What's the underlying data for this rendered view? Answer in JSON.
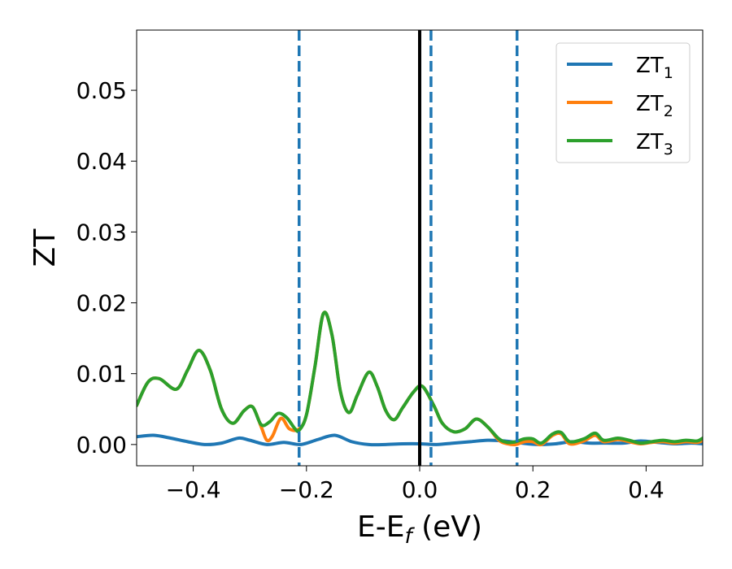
{
  "chart_data": {
    "type": "line",
    "xlabel": "E-E",
    "xlabel_subscript": "f",
    "xlabel_suffix": " (eV)",
    "ylabel": "ZT",
    "xlim": [
      -0.5,
      0.5
    ],
    "ylim": [
      -0.003,
      0.0585
    ],
    "xticks": [
      -0.4,
      -0.2,
      0.0,
      0.2,
      0.4
    ],
    "xtick_labels": [
      "−0.4",
      "−0.2",
      "0.0",
      "0.2",
      "0.4"
    ],
    "yticks": [
      0.0,
      0.01,
      0.02,
      0.03,
      0.04,
      0.05
    ],
    "ytick_labels": [
      "0.00",
      "0.01",
      "0.02",
      "0.03",
      "0.04",
      "0.05"
    ],
    "grid": false,
    "legend_position": "top-right",
    "vertical_lines": [
      {
        "x": 0.0,
        "style": "solid",
        "color": "#000000"
      },
      {
        "x": -0.213,
        "style": "dashed",
        "color": "#1f77b4"
      },
      {
        "x": 0.02,
        "style": "dashed",
        "color": "#1f77b4"
      },
      {
        "x": 0.172,
        "style": "dashed",
        "color": "#1f77b4"
      }
    ],
    "series": [
      {
        "name": "ZT",
        "name_subscript": "1",
        "color": "#1f77b4",
        "x": [
          -0.5,
          -0.47,
          -0.44,
          -0.41,
          -0.38,
          -0.35,
          -0.32,
          -0.3,
          -0.27,
          -0.24,
          -0.21,
          -0.18,
          -0.15,
          -0.12,
          -0.09,
          -0.06,
          -0.03,
          0.0,
          0.03,
          0.06,
          0.09,
          0.12,
          0.15,
          0.18,
          0.21,
          0.24,
          0.27,
          0.3,
          0.33,
          0.36,
          0.39,
          0.42,
          0.45,
          0.48,
          0.5
        ],
        "y": [
          0.0011,
          0.0013,
          0.0009,
          0.0004,
          0.0,
          0.0002,
          0.0009,
          0.0006,
          0.0,
          0.0003,
          0.0,
          0.0007,
          0.0013,
          0.0004,
          0.0,
          0.0,
          0.0001,
          0.0001,
          0.0,
          0.0002,
          0.0004,
          0.0006,
          0.0005,
          0.0002,
          0.0,
          0.0001,
          0.0004,
          0.0002,
          0.0002,
          0.0002,
          0.0005,
          0.0003,
          0.0001,
          0.0002,
          0.0001
        ]
      },
      {
        "name": "ZT",
        "name_subscript": "2",
        "color": "#ff7f0e",
        "x": [
          -0.5,
          -0.48,
          -0.46,
          -0.43,
          -0.41,
          -0.39,
          -0.37,
          -0.35,
          -0.33,
          -0.31,
          -0.295,
          -0.28,
          -0.27,
          -0.26,
          -0.245,
          -0.23,
          -0.213,
          -0.2,
          -0.185,
          -0.17,
          -0.155,
          -0.14,
          -0.125,
          -0.11,
          -0.09,
          -0.075,
          -0.06,
          -0.045,
          -0.03,
          -0.01,
          0.005,
          0.025,
          0.04,
          0.06,
          0.08,
          0.1,
          0.12,
          0.14,
          0.155,
          0.17,
          0.185,
          0.2,
          0.215,
          0.235,
          0.25,
          0.265,
          0.29,
          0.31,
          0.325,
          0.35,
          0.37,
          0.39,
          0.41,
          0.43,
          0.45,
          0.47,
          0.49,
          0.5
        ],
        "y": [
          0.0055,
          0.0088,
          0.0093,
          0.0078,
          0.0105,
          0.0133,
          0.0105,
          0.005,
          0.003,
          0.0048,
          0.0053,
          0.0025,
          0.0006,
          0.0012,
          0.0037,
          0.0022,
          0.0022,
          0.0042,
          0.011,
          0.0185,
          0.0155,
          0.0075,
          0.0045,
          0.007,
          0.0102,
          0.0082,
          0.0048,
          0.0035,
          0.0052,
          0.0075,
          0.0082,
          0.0055,
          0.003,
          0.0018,
          0.0022,
          0.0036,
          0.0025,
          0.0006,
          0.0001,
          0.0,
          0.0004,
          0.0004,
          0.0,
          0.0013,
          0.0015,
          0.0001,
          0.0005,
          0.0013,
          0.0004,
          0.0007,
          0.0004,
          0.0001,
          0.0003,
          0.0004,
          0.0002,
          0.0004,
          0.0003,
          0.0006
        ]
      },
      {
        "name": "ZT",
        "name_subscript": "3",
        "color": "#2ca02c",
        "x": [
          -0.5,
          -0.48,
          -0.46,
          -0.43,
          -0.41,
          -0.39,
          -0.37,
          -0.35,
          -0.33,
          -0.31,
          -0.295,
          -0.28,
          -0.265,
          -0.25,
          -0.235,
          -0.22,
          -0.213,
          -0.2,
          -0.185,
          -0.17,
          -0.155,
          -0.14,
          -0.125,
          -0.11,
          -0.09,
          -0.075,
          -0.06,
          -0.045,
          -0.03,
          -0.01,
          0.005,
          0.025,
          0.04,
          0.06,
          0.08,
          0.1,
          0.12,
          0.14,
          0.155,
          0.17,
          0.185,
          0.2,
          0.215,
          0.235,
          0.25,
          0.265,
          0.29,
          0.31,
          0.325,
          0.35,
          0.37,
          0.39,
          0.41,
          0.43,
          0.45,
          0.47,
          0.49,
          0.5
        ],
        "y": [
          0.0055,
          0.0088,
          0.0093,
          0.0078,
          0.0105,
          0.0133,
          0.0105,
          0.005,
          0.003,
          0.0048,
          0.0053,
          0.0028,
          0.0032,
          0.0044,
          0.0038,
          0.0022,
          0.002,
          0.0042,
          0.011,
          0.0185,
          0.0155,
          0.0075,
          0.0045,
          0.007,
          0.0102,
          0.0082,
          0.0048,
          0.0035,
          0.0052,
          0.0075,
          0.0082,
          0.0055,
          0.003,
          0.0018,
          0.0022,
          0.0036,
          0.0025,
          0.0008,
          0.0003,
          0.0004,
          0.0008,
          0.0008,
          0.0002,
          0.0015,
          0.0017,
          0.0004,
          0.0008,
          0.0016,
          0.0006,
          0.0009,
          0.0006,
          0.0002,
          0.0004,
          0.0006,
          0.0004,
          0.0006,
          0.0005,
          0.0009
        ]
      }
    ]
  }
}
